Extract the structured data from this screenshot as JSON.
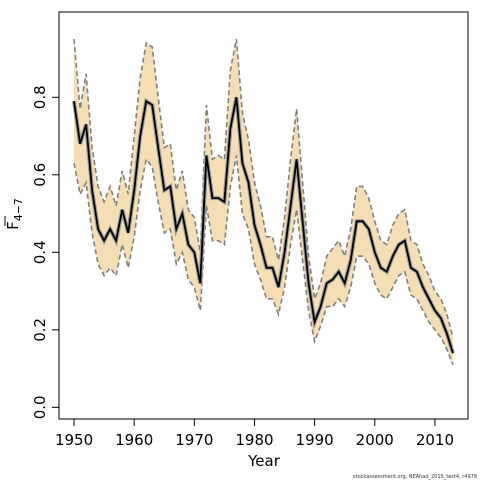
{
  "chart_data": {
    "type": "line",
    "xlabel": "Year",
    "ylabel": "F",
    "ylabel_subscript": "4−7",
    "xlim": [
      1947.5,
      2015.5
    ],
    "ylim": [
      -0.03,
      1.02
    ],
    "x_ticks": [
      1950,
      1960,
      1970,
      1980,
      1990,
      2000,
      2010
    ],
    "x_tick_labels": [
      "1950",
      "1960",
      "1970",
      "1980",
      "1990",
      "2000",
      "2010"
    ],
    "y_ticks": [
      0.0,
      0.2,
      0.4,
      0.6,
      0.8
    ],
    "y_tick_labels": [
      "0.0",
      "0.2",
      "0.4",
      "0.6",
      "0.8"
    ],
    "grid": false,
    "caption": "stockassessment.org, NEAhad_2015_test4, r4978",
    "series": [
      {
        "role": "estimate",
        "color": "#000000",
        "x": [
          1950,
          1951,
          1952,
          1953,
          1954,
          1955,
          1956,
          1957,
          1958,
          1959,
          1960,
          1961,
          1962,
          1963,
          1964,
          1965,
          1966,
          1967,
          1968,
          1969,
          1970,
          1971,
          1972,
          1973,
          1974,
          1975,
          1976,
          1977,
          1978,
          1979,
          1980,
          1981,
          1982,
          1983,
          1984,
          1985,
          1986,
          1987,
          1988,
          1989,
          1990,
          1991,
          1992,
          1993,
          1994,
          1995,
          1996,
          1997,
          1998,
          1999,
          2000,
          2001,
          2002,
          2003,
          2004,
          2005,
          2006,
          2007,
          2008,
          2009,
          2010,
          2011,
          2012,
          2013
        ],
        "y": [
          0.79,
          0.68,
          0.73,
          0.56,
          0.46,
          0.43,
          0.46,
          0.43,
          0.51,
          0.45,
          0.56,
          0.7,
          0.79,
          0.78,
          0.67,
          0.56,
          0.57,
          0.46,
          0.5,
          0.42,
          0.4,
          0.32,
          0.65,
          0.54,
          0.54,
          0.53,
          0.72,
          0.8,
          0.63,
          0.58,
          0.47,
          0.42,
          0.36,
          0.36,
          0.31,
          0.4,
          0.52,
          0.64,
          0.48,
          0.32,
          0.22,
          0.26,
          0.32,
          0.33,
          0.35,
          0.32,
          0.38,
          0.48,
          0.48,
          0.46,
          0.4,
          0.36,
          0.35,
          0.39,
          0.42,
          0.43,
          0.36,
          0.35,
          0.31,
          0.28,
          0.25,
          0.23,
          0.19,
          0.14
        ]
      },
      {
        "role": "upper_ci",
        "color": "#7f7f7f",
        "x": [
          1950,
          1951,
          1952,
          1953,
          1954,
          1955,
          1956,
          1957,
          1958,
          1959,
          1960,
          1961,
          1962,
          1963,
          1964,
          1965,
          1966,
          1967,
          1968,
          1969,
          1970,
          1971,
          1972,
          1973,
          1974,
          1975,
          1976,
          1977,
          1978,
          1979,
          1980,
          1981,
          1982,
          1983,
          1984,
          1985,
          1986,
          1987,
          1988,
          1989,
          1990,
          1991,
          1992,
          1993,
          1994,
          1995,
          1996,
          1997,
          1998,
          1999,
          2000,
          2001,
          2002,
          2003,
          2004,
          2005,
          2006,
          2007,
          2008,
          2009,
          2010,
          2011,
          2012,
          2013
        ],
        "y": [
          0.95,
          0.77,
          0.86,
          0.67,
          0.57,
          0.53,
          0.57,
          0.52,
          0.61,
          0.55,
          0.7,
          0.85,
          0.94,
          0.93,
          0.8,
          0.67,
          0.68,
          0.56,
          0.61,
          0.51,
          0.49,
          0.4,
          0.78,
          0.64,
          0.65,
          0.64,
          0.87,
          0.95,
          0.76,
          0.69,
          0.58,
          0.52,
          0.44,
          0.44,
          0.38,
          0.49,
          0.64,
          0.77,
          0.58,
          0.39,
          0.28,
          0.32,
          0.39,
          0.41,
          0.43,
          0.39,
          0.46,
          0.57,
          0.57,
          0.54,
          0.48,
          0.43,
          0.42,
          0.47,
          0.5,
          0.51,
          0.43,
          0.42,
          0.37,
          0.34,
          0.3,
          0.28,
          0.24,
          0.18
        ]
      },
      {
        "role": "lower_ci",
        "color": "#7f7f7f",
        "x": [
          1950,
          1951,
          1952,
          1953,
          1954,
          1955,
          1956,
          1957,
          1958,
          1959,
          1960,
          1961,
          1962,
          1963,
          1964,
          1965,
          1966,
          1967,
          1968,
          1969,
          1970,
          1971,
          1972,
          1973,
          1974,
          1975,
          1976,
          1977,
          1978,
          1979,
          1980,
          1981,
          1982,
          1983,
          1984,
          1985,
          1986,
          1987,
          1988,
          1989,
          1990,
          1991,
          1992,
          1993,
          1994,
          1995,
          1996,
          1997,
          1998,
          1999,
          2000,
          2001,
          2002,
          2003,
          2004,
          2005,
          2006,
          2007,
          2008,
          2009,
          2010,
          2011,
          2012,
          2013
        ],
        "y": [
          0.63,
          0.55,
          0.58,
          0.45,
          0.37,
          0.34,
          0.36,
          0.34,
          0.42,
          0.36,
          0.44,
          0.56,
          0.64,
          0.62,
          0.53,
          0.45,
          0.46,
          0.37,
          0.4,
          0.33,
          0.31,
          0.25,
          0.52,
          0.43,
          0.43,
          0.42,
          0.57,
          0.65,
          0.5,
          0.46,
          0.37,
          0.33,
          0.28,
          0.28,
          0.24,
          0.31,
          0.42,
          0.51,
          0.38,
          0.25,
          0.17,
          0.21,
          0.26,
          0.26,
          0.28,
          0.26,
          0.31,
          0.39,
          0.39,
          0.37,
          0.32,
          0.29,
          0.28,
          0.31,
          0.34,
          0.35,
          0.29,
          0.28,
          0.25,
          0.22,
          0.2,
          0.18,
          0.15,
          0.11
        ]
      }
    ],
    "band_fill_color": "#f5deb3",
    "band_edge_color": "#808080"
  }
}
